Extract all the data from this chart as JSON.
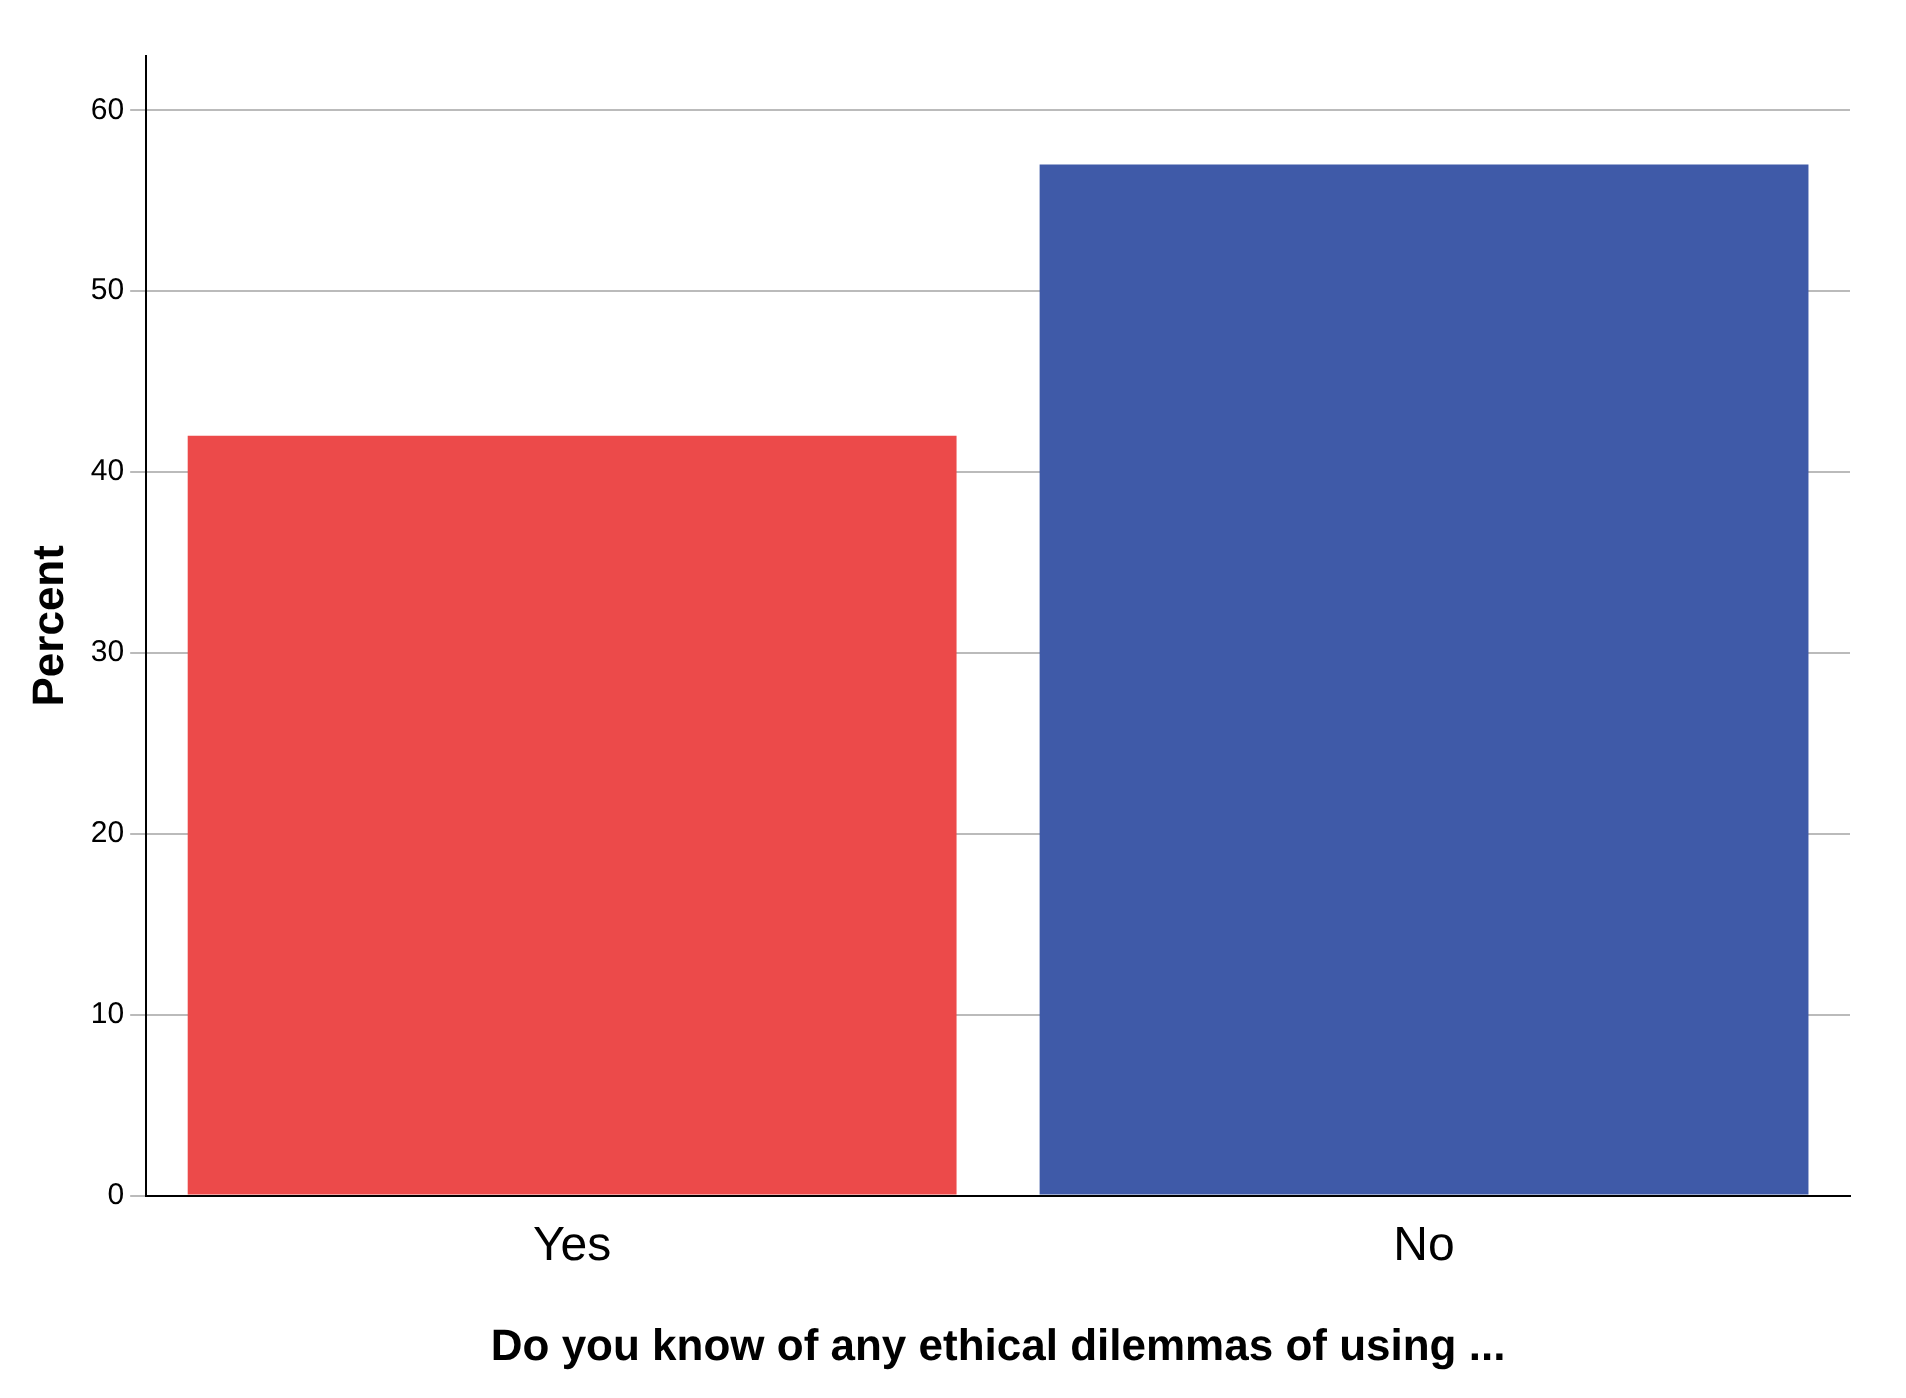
{
  "chart_data": {
    "type": "bar",
    "xlabel": "Do you know of any ethical dilemmas of using ...",
    "ylabel": "Percent",
    "categories": [
      "Yes",
      "No"
    ],
    "values": [
      42,
      57
    ],
    "colors": [
      "#ec4a4a",
      "#3f5aa8"
    ],
    "ylim": [
      0,
      63
    ],
    "yticks": [
      0,
      10,
      20,
      30,
      40,
      50,
      60
    ],
    "grid": "y"
  }
}
